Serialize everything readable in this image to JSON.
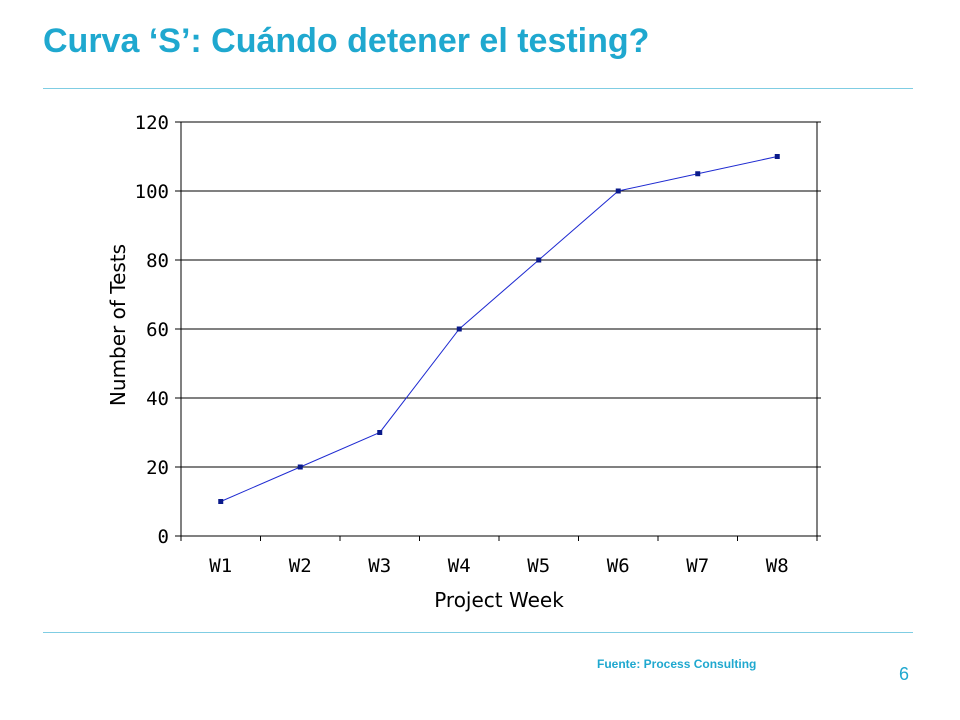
{
  "slide": {
    "title": "Curva ‘S’: Cuándo detener el testing?",
    "source": "Fuente: Process Consulting",
    "page_number": "6",
    "accent_color": "#1fa8cf"
  },
  "chart_data": {
    "type": "line",
    "categories": [
      "W1",
      "W2",
      "W3",
      "W4",
      "W5",
      "W6",
      "W7",
      "W8"
    ],
    "series": [
      {
        "values": [
          10,
          20,
          30,
          60,
          80,
          100,
          105,
          110
        ]
      }
    ],
    "xlabel": "Project Week",
    "ylabel": "Number of Tests",
    "ylim": [
      0,
      120
    ],
    "yticks": [
      0,
      20,
      40,
      60,
      80,
      100,
      120
    ],
    "grid": true,
    "line_color": "#1f2bd1",
    "marker_color": "#0a1a8a"
  }
}
